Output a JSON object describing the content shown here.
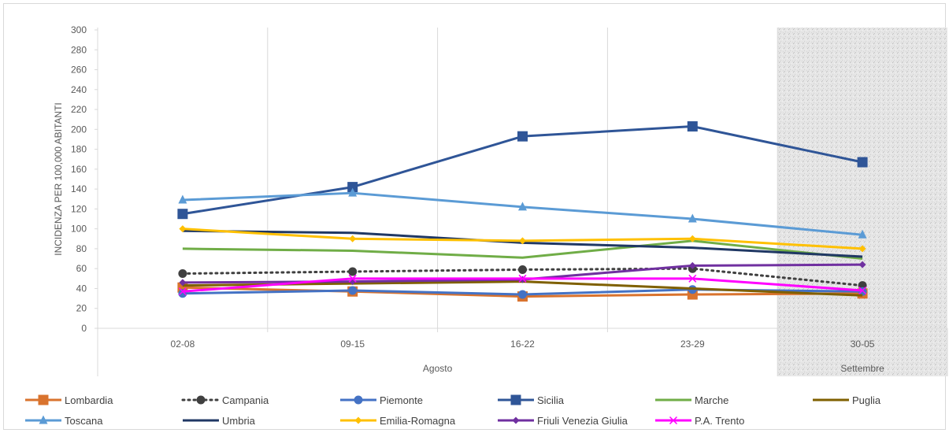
{
  "chart_data": {
    "type": "line",
    "ylabel": "INCIDENZA PER 100,000 ABITANTI",
    "ylim": [
      0,
      300
    ],
    "ystep": 20,
    "categories": [
      "02-08",
      "09-15",
      "16-22",
      "23-29",
      "30-05"
    ],
    "groups": [
      {
        "label": "Agosto",
        "span": [
          0,
          3
        ]
      },
      {
        "label": "Settembre",
        "span": [
          4,
          4
        ]
      }
    ],
    "shaded_category_index": 4,
    "grid": "vertical",
    "legend_position": "bottom",
    "series": [
      {
        "name": "Lombardia",
        "color": "#d9732e",
        "marker": "square",
        "dash": "solid",
        "values": [
          41,
          37,
          32,
          34,
          35
        ]
      },
      {
        "name": "Campania",
        "color": "#404040",
        "marker": "circle",
        "dash": "dotted",
        "values": [
          55,
          57,
          59,
          60,
          43
        ]
      },
      {
        "name": "Piemonte",
        "color": "#4472c4",
        "marker": "circle",
        "dash": "solid",
        "values": [
          35,
          38,
          34,
          39,
          37
        ]
      },
      {
        "name": "Sicilia",
        "color": "#2f5597",
        "marker": "square",
        "dash": "solid",
        "values": [
          115,
          142,
          193,
          203,
          167
        ]
      },
      {
        "name": "Marche",
        "color": "#70ad47",
        "marker": "none",
        "dash": "solid",
        "values": [
          80,
          78,
          71,
          88,
          70
        ]
      },
      {
        "name": "Puglia",
        "color": "#7f6000",
        "marker": "none",
        "dash": "solid",
        "values": [
          43,
          45,
          47,
          40,
          33
        ]
      },
      {
        "name": "Toscana",
        "color": "#5b9bd5",
        "marker": "triangle",
        "dash": "solid",
        "values": [
          129,
          136,
          122,
          110,
          94
        ]
      },
      {
        "name": "Umbria",
        "color": "#203864",
        "marker": "none",
        "dash": "solid",
        "values": [
          98,
          96,
          86,
          81,
          72
        ]
      },
      {
        "name": "Emilia-Romagna",
        "color": "#ffc000",
        "marker": "diamond",
        "dash": "solid",
        "values": [
          100,
          90,
          88,
          90,
          80
        ]
      },
      {
        "name": "Friuli Venezia Giulia",
        "color": "#7030a0",
        "marker": "diamond",
        "dash": "solid",
        "values": [
          46,
          47,
          49,
          63,
          64
        ]
      },
      {
        "name": "P.A. Trento",
        "color": "#ff00ff",
        "marker": "x",
        "dash": "solid",
        "values": [
          37,
          50,
          50,
          50,
          38
        ]
      }
    ]
  }
}
